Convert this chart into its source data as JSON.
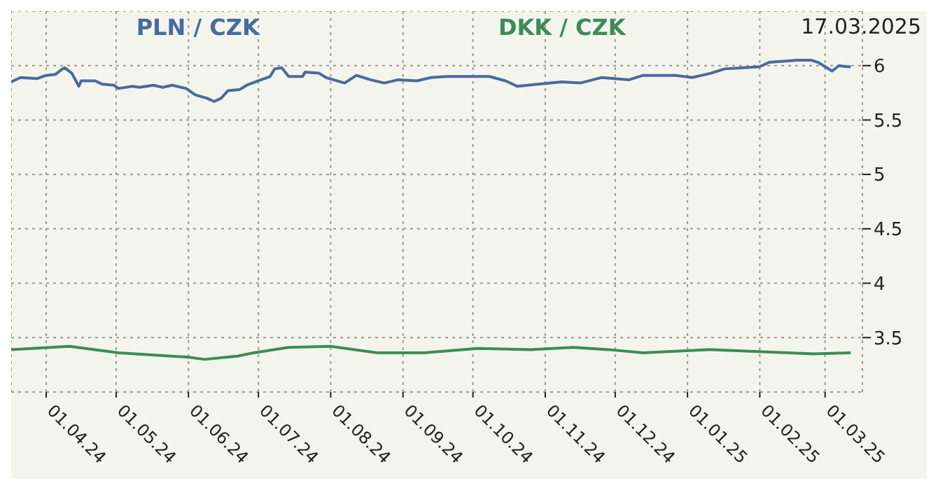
{
  "chart_data": {
    "type": "line",
    "annotations": [
      "17.03.2025"
    ],
    "xlim": [
      "2024-03-17",
      "2025-03-17"
    ],
    "xticks": [
      {
        "value": "2024-04-01",
        "label": "01.04.24"
      },
      {
        "value": "2024-05-01",
        "label": "01.05.24"
      },
      {
        "value": "2024-06-01",
        "label": "01.06.24"
      },
      {
        "value": "2024-07-01",
        "label": "01.07.24"
      },
      {
        "value": "2024-08-01",
        "label": "01.08.24"
      },
      {
        "value": "2024-09-01",
        "label": "01.09.24"
      },
      {
        "value": "2024-10-01",
        "label": "01.10.24"
      },
      {
        "value": "2024-11-01",
        "label": "01.11.24"
      },
      {
        "value": "2024-12-01",
        "label": "01.12.24"
      },
      {
        "value": "2025-01-01",
        "label": "01.01.25"
      },
      {
        "value": "2025-02-01",
        "label": "01.02.25"
      },
      {
        "value": "2025-03-01",
        "label": "01.03.25"
      }
    ],
    "ylim": [
      3,
      6.5
    ],
    "yticks": [
      3.5,
      4,
      4.5,
      5,
      5.5,
      6
    ],
    "grid": true,
    "legend": "top",
    "marker": "none",
    "line_style": "solid",
    "series": [
      {
        "name": "PLN / CZK",
        "color": "#4a6a9e",
        "x": [
          "2024-03-17",
          "2024-03-21",
          "2024-03-28",
          "2024-04-01",
          "2024-04-05",
          "2024-04-08",
          "2024-04-09",
          "2024-04-12",
          "2024-04-15",
          "2024-04-16",
          "2024-04-22",
          "2024-04-25",
          "2024-04-30",
          "2024-05-02",
          "2024-05-08",
          "2024-05-11",
          "2024-05-17",
          "2024-05-21",
          "2024-05-25",
          "2024-05-31",
          "2024-06-04",
          "2024-06-09",
          "2024-06-12",
          "2024-06-15",
          "2024-06-18",
          "2024-06-23",
          "2024-06-26",
          "2024-07-01",
          "2024-07-06",
          "2024-07-08",
          "2024-07-11",
          "2024-07-14",
          "2024-07-20",
          "2024-07-21",
          "2024-07-27",
          "2024-07-30",
          "2024-08-07",
          "2024-08-12",
          "2024-08-18",
          "2024-08-24",
          "2024-08-30",
          "2024-09-07",
          "2024-09-13",
          "2024-09-20",
          "2024-09-28",
          "2024-10-08",
          "2024-10-15",
          "2024-10-20",
          "2024-10-29",
          "2024-11-08",
          "2024-11-16",
          "2024-11-25",
          "2024-12-07",
          "2024-12-13",
          "2024-12-27",
          "2025-01-03",
          "2025-01-11",
          "2025-01-17",
          "2025-01-25",
          "2025-02-01",
          "2025-02-05",
          "2025-02-17",
          "2025-02-23",
          "2025-02-26",
          "2025-03-01",
          "2025-03-04",
          "2025-03-07",
          "2025-03-10",
          "2025-03-12"
        ],
        "values": [
          5.85,
          5.89,
          5.88,
          5.91,
          5.92,
          5.97,
          5.98,
          5.93,
          5.81,
          5.86,
          5.86,
          5.83,
          5.82,
          5.79,
          5.81,
          5.8,
          5.82,
          5.8,
          5.82,
          5.79,
          5.73,
          5.7,
          5.67,
          5.7,
          5.77,
          5.78,
          5.82,
          5.86,
          5.9,
          5.97,
          5.98,
          5.9,
          5.9,
          5.94,
          5.93,
          5.89,
          5.84,
          5.91,
          5.87,
          5.84,
          5.87,
          5.86,
          5.89,
          5.9,
          5.9,
          5.9,
          5.86,
          5.81,
          5.83,
          5.85,
          5.84,
          5.89,
          5.87,
          5.91,
          5.91,
          5.89,
          5.93,
          5.97,
          5.98,
          5.99,
          6.03,
          6.05,
          6.05,
          6.03,
          5.99,
          5.95,
          6.0,
          5.99,
          5.99
        ]
      },
      {
        "name": "DKK / CZK",
        "color": "#3f8a5a",
        "x": [
          "2024-03-17",
          "2024-04-11",
          "2024-05-02",
          "2024-06-01",
          "2024-06-08",
          "2024-06-22",
          "2024-06-29",
          "2024-07-14",
          "2024-08-01",
          "2024-08-21",
          "2024-09-10",
          "2024-10-03",
          "2024-10-26",
          "2024-11-13",
          "2024-11-28",
          "2024-12-13",
          "2025-01-10",
          "2025-02-02",
          "2025-02-24",
          "2025-03-12"
        ],
        "values": [
          3.39,
          3.42,
          3.36,
          3.32,
          3.3,
          3.33,
          3.36,
          3.41,
          3.42,
          3.36,
          3.36,
          3.4,
          3.39,
          3.41,
          3.39,
          3.36,
          3.39,
          3.37,
          3.35,
          3.36
        ]
      }
    ]
  }
}
